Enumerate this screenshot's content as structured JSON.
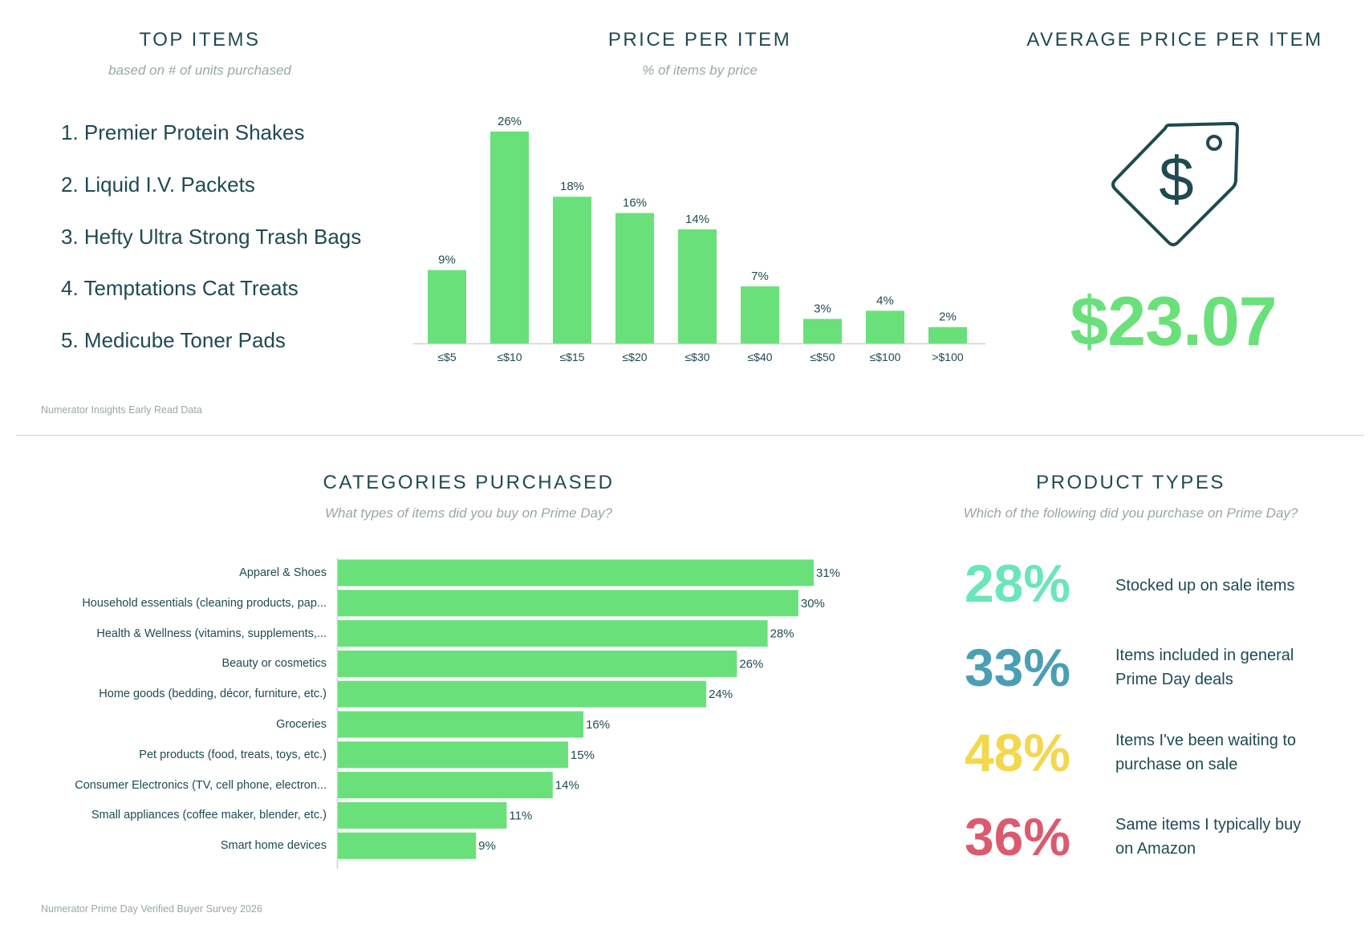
{
  "top_items": {
    "title": "TOP ITEMS",
    "subtitle": "based on # of units purchased",
    "items": [
      "1. Premier Protein Shakes",
      "2. Liquid I.V. Packets",
      "3. Hefty Ultra Strong Trash Bags",
      "4. Temptations Cat Treats",
      "5. Medicube Toner Pads"
    ],
    "source": "Numerator Insights Early Read Data"
  },
  "price_per_item": {
    "title": "PRICE PER ITEM",
    "subtitle": "% of items by price"
  },
  "average_price": {
    "title": "AVERAGE PRICE PER ITEM",
    "value": "$23.07",
    "icon": "price-tag-dollar-icon"
  },
  "categories": {
    "title": "CATEGORIES PURCHASED",
    "subtitle": "What types of items did you buy on Prime Day?",
    "source": "Numerator Prime Day Verified Buyer Survey 2026"
  },
  "product_types": {
    "title": "PRODUCT TYPES",
    "subtitle": "Which of the following did you purchase on Prime Day?",
    "items": [
      {
        "pct": "28%",
        "text": "Stocked up on sale items",
        "color": "#6ae6b9"
      },
      {
        "pct": "33%",
        "text": "Items included in general Prime Day deals",
        "color": "#4a9fb5"
      },
      {
        "pct": "48%",
        "text": "Items I've been waiting to purchase on sale",
        "color": "#f3d74d"
      },
      {
        "pct": "36%",
        "text": "Same items I typically buy on Amazon",
        "color": "#dc5a6e"
      }
    ]
  },
  "colors": {
    "bar": "#6ae07a",
    "text": "#1f4a52",
    "muted": "#9aa6a8"
  },
  "chart_data": [
    {
      "type": "bar",
      "title": "PRICE PER ITEM",
      "subtitle": "% of items by price",
      "categories": [
        "≤$5",
        "≤$10",
        "≤$15",
        "≤$20",
        "≤$30",
        "≤$40",
        "≤$50",
        "≤$100",
        ">$100"
      ],
      "values": [
        9,
        26,
        18,
        16,
        14,
        7,
        3,
        4,
        2
      ],
      "value_labels": [
        "9%",
        "26%",
        "18%",
        "16%",
        "14%",
        "7%",
        "3%",
        "4%",
        "2%"
      ],
      "ylim": [
        0,
        26
      ],
      "grid": false,
      "legend": "none"
    },
    {
      "type": "bar",
      "orientation": "horizontal",
      "title": "CATEGORIES PURCHASED",
      "subtitle": "What types of items did you buy on Prime Day?",
      "categories": [
        "Apparel & Shoes",
        "Household essentials (cleaning products, pap...",
        "Health & Wellness (vitamins, supplements,...",
        "Beauty or cosmetics",
        "Home goods (bedding, décor, furniture, etc.)",
        "Groceries",
        "Pet products (food, treats, toys, etc.)",
        "Consumer Electronics (TV, cell phone, electron...",
        "Small appliances (coffee maker, blender, etc.)",
        "Smart home devices"
      ],
      "values": [
        31,
        30,
        28,
        26,
        24,
        16,
        15,
        14,
        11,
        9
      ],
      "value_labels": [
        "31%",
        "30%",
        "28%",
        "26%",
        "24%",
        "16%",
        "15%",
        "14%",
        "11%",
        "9%"
      ],
      "xlim": [
        0,
        31
      ],
      "grid": false,
      "legend": "none"
    }
  ]
}
